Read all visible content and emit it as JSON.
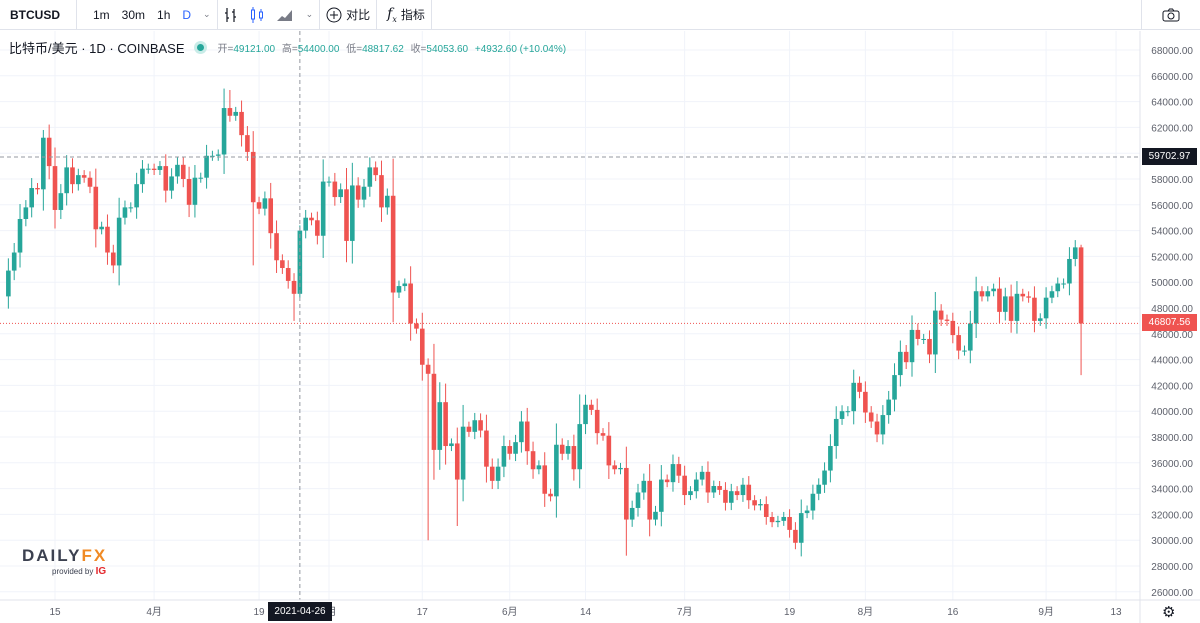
{
  "toolbar": {
    "symbol": "BTCUSD",
    "intervals": [
      "1m",
      "30m",
      "1h",
      "D"
    ],
    "active_interval": "D",
    "compare_label": "对比",
    "indicators_label": "指标"
  },
  "legend": {
    "title": "比特币/美元 · 1D · COINBASE",
    "open_label": "开=",
    "open": "49121.00",
    "high_label": "高=",
    "high": "54400.00",
    "low_label": "低=",
    "low": "48817.62",
    "close_label": "收=",
    "close": "54053.60",
    "change": "+4932.60 (+10.04%)"
  },
  "crosshair": {
    "price_label": "59702.97",
    "date_label": "2021-04-26"
  },
  "last_price_label": "46807.56",
  "colors": {
    "up": "#26a69a",
    "down": "#ef5350",
    "grid": "#f0f3fa"
  },
  "logo": {
    "brand_a": "DAILY",
    "brand_b": "FX",
    "provided": "provided by",
    "ig": "IG"
  },
  "chart_data": {
    "type": "candlestick",
    "title": "BTCUSD 1D COINBASE",
    "start_date": "2021-03-07",
    "ylim": [
      25000,
      69000
    ],
    "y_ticks": [
      "68000.00",
      "66000.00",
      "64000.00",
      "62000.00",
      "60000.00",
      "58000.00",
      "56000.00",
      "54000.00",
      "52000.00",
      "50000.00",
      "48000.00",
      "46000.00",
      "44000.00",
      "42000.00",
      "40000.00",
      "38000.00",
      "36000.00",
      "34000.00",
      "32000.00",
      "30000.00",
      "28000.00",
      "26000.00"
    ],
    "x_ticks": [
      {
        "label": "15",
        "day": 8
      },
      {
        "label": "4月",
        "day": 25
      },
      {
        "label": "19",
        "day": 43
      },
      {
        "label": "5月",
        "day": 55
      },
      {
        "label": "17",
        "day": 71
      },
      {
        "label": "6月",
        "day": 86
      },
      {
        "label": "14",
        "day": 99
      },
      {
        "label": "7月",
        "day": 116
      },
      {
        "label": "19",
        "day": 134
      },
      {
        "label": "8月",
        "day": 147
      },
      {
        "label": "16",
        "day": 162
      },
      {
        "label": "9月",
        "day": 178
      },
      {
        "label": "13",
        "day": 190
      }
    ],
    "first_open": 48.9,
    "closes_k": [
      50.9,
      52.3,
      54.9,
      55.8,
      57.3,
      57.2,
      61.2,
      59.0,
      55.6,
      56.9,
      58.9,
      57.6,
      58.3,
      58.1,
      57.4,
      54.1,
      54.3,
      52.3,
      51.3,
      55.0,
      55.8,
      55.8,
      57.6,
      58.8,
      58.8,
      58.7,
      59.0,
      57.1,
      58.2,
      59.1,
      58.0,
      56.0,
      58.1,
      58.1,
      59.8,
      59.8,
      59.9,
      63.5,
      62.9,
      63.2,
      61.4,
      60.1,
      56.2,
      55.7,
      56.5,
      53.8,
      51.7,
      51.1,
      50.1,
      49.1,
      54.0,
      55.0,
      54.8,
      53.6,
      57.8,
      57.8,
      56.6,
      57.2,
      53.2,
      57.5,
      56.4,
      57.4,
      58.9,
      58.3,
      55.8,
      56.7,
      49.2,
      49.7,
      49.9,
      46.8,
      46.4,
      43.6,
      42.9,
      37.0,
      40.7,
      37.3,
      37.5,
      34.7,
      38.8,
      38.4,
      39.3,
      38.5,
      35.7,
      34.6,
      35.7,
      37.3,
      36.7,
      37.6,
      39.2,
      36.9,
      35.5,
      35.8,
      33.6,
      33.4,
      37.4,
      36.7,
      37.3,
      35.5,
      39.0,
      40.5,
      40.1,
      38.3,
      38.1,
      35.8,
      35.5,
      35.6,
      31.6,
      32.5,
      33.7,
      34.6,
      31.6,
      32.2,
      34.7,
      34.5,
      35.9,
      35.0,
      33.5,
      33.8,
      34.7,
      35.3,
      33.7,
      34.2,
      33.9,
      32.9,
      33.8,
      33.5,
      34.3,
      33.1,
      32.7,
      32.8,
      31.8,
      31.4,
      31.5,
      31.8,
      30.8,
      29.8,
      32.1,
      32.3,
      33.6,
      34.3,
      35.4,
      37.3,
      39.4,
      40.0,
      40.0,
      42.2,
      41.5,
      39.9,
      39.2,
      38.2,
      39.7,
      40.9,
      42.8,
      44.6,
      43.8,
      46.3,
      45.6,
      45.6,
      44.4,
      47.8,
      47.1,
      47.0,
      45.9,
      44.7,
      44.7,
      46.8,
      49.3,
      48.9,
      49.3,
      49.5,
      47.7,
      48.9,
      47.0,
      49.1,
      48.9,
      48.8,
      47.0,
      47.2,
      48.8,
      49.3,
      49.9,
      49.9,
      51.8,
      52.7,
      46.8
    ],
    "wick_extremes_k": {
      "6": [
        61.8,
        null
      ],
      "37": [
        null,
        null
      ],
      "38": [
        64.9,
        null
      ],
      "42": [
        null,
        51.3
      ],
      "49": [
        null,
        47.0
      ],
      "50": [
        54.4,
        48.8
      ],
      "66": [
        null,
        46.9
      ],
      "72": [
        null,
        30.0
      ],
      "77": [
        null,
        31.1
      ],
      "98": [
        41.3,
        null
      ],
      "106": [
        null,
        28.8
      ],
      "135": [
        null,
        29.3
      ],
      "184": [
        52.9,
        42.8
      ]
    }
  }
}
